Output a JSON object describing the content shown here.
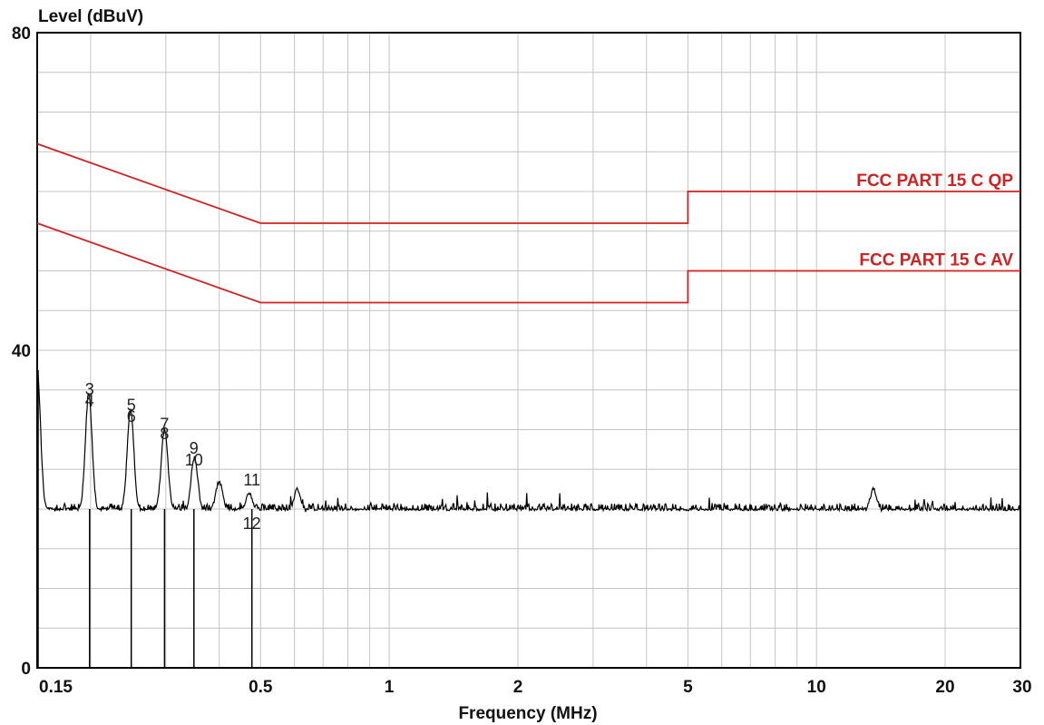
{
  "chart_data": {
    "type": "line",
    "ylabel": "Level (dBuV)",
    "xlabel": "Frequency (MHz)",
    "x_scale": "log",
    "xlim": [
      0.15,
      30
    ],
    "ylim": [
      0,
      80
    ],
    "grid": true,
    "y_ticks": [
      {
        "value": 0,
        "label": "0"
      },
      {
        "value": 40,
        "label": "40"
      },
      {
        "value": 80,
        "label": "80"
      }
    ],
    "x_ticks": [
      {
        "value": 0.15,
        "label": "0.15"
      },
      {
        "value": 0.5,
        "label": "0.5"
      },
      {
        "value": 1,
        "label": "1"
      },
      {
        "value": 2,
        "label": "2"
      },
      {
        "value": 5,
        "label": "5"
      },
      {
        "value": 10,
        "label": "10"
      },
      {
        "value": 20,
        "label": "20"
      },
      {
        "value": 30,
        "label": "30"
      }
    ],
    "limit_lines": [
      {
        "name": "FCC PART 15 C QP",
        "color": "#d42020",
        "points": [
          [
            0.15,
            66
          ],
          [
            0.5,
            56
          ],
          [
            5,
            56
          ],
          [
            5,
            60
          ],
          [
            30,
            60
          ]
        ]
      },
      {
        "name": "FCC PART 15 C AV",
        "color": "#d42020",
        "points": [
          [
            0.15,
            56
          ],
          [
            0.5,
            46
          ],
          [
            5,
            46
          ],
          [
            5,
            50
          ],
          [
            30,
            50
          ]
        ]
      }
    ],
    "trace": {
      "color": "#000000",
      "noise_floor_dbuv": 19.8,
      "peaks": [
        {
          "x": 0.15,
          "y": 37.5
        },
        {
          "x": 0.198,
          "y": 34.5
        },
        {
          "x": 0.248,
          "y": 32.5
        },
        {
          "x": 0.298,
          "y": 30.0
        },
        {
          "x": 0.35,
          "y": 26.5
        },
        {
          "x": 0.4,
          "y": 23.5
        },
        {
          "x": 0.47,
          "y": 22.0
        },
        {
          "x": 0.61,
          "y": 22.5
        },
        {
          "x": 13.6,
          "y": 22.5
        }
      ]
    },
    "markers": [
      {
        "label": "3",
        "x": 0.199,
        "y": 34.4
      },
      {
        "label": "4",
        "x": 0.199,
        "y": 33.0
      },
      {
        "label": "5",
        "x": 0.249,
        "y": 32.4
      },
      {
        "label": "6",
        "x": 0.249,
        "y": 31.0
      },
      {
        "label": "7",
        "x": 0.298,
        "y": 30.0
      },
      {
        "label": "8",
        "x": 0.298,
        "y": 28.8
      },
      {
        "label": "9",
        "x": 0.349,
        "y": 27.0
      },
      {
        "label": "10",
        "x": 0.349,
        "y": 25.5
      },
      {
        "label": "11",
        "x": 0.477,
        "y": 23.0
      },
      {
        "label": "12",
        "x": 0.477,
        "y": 17.5
      }
    ],
    "marker_lines_x": [
      0.199,
      0.249,
      0.298,
      0.349,
      0.477
    ]
  }
}
